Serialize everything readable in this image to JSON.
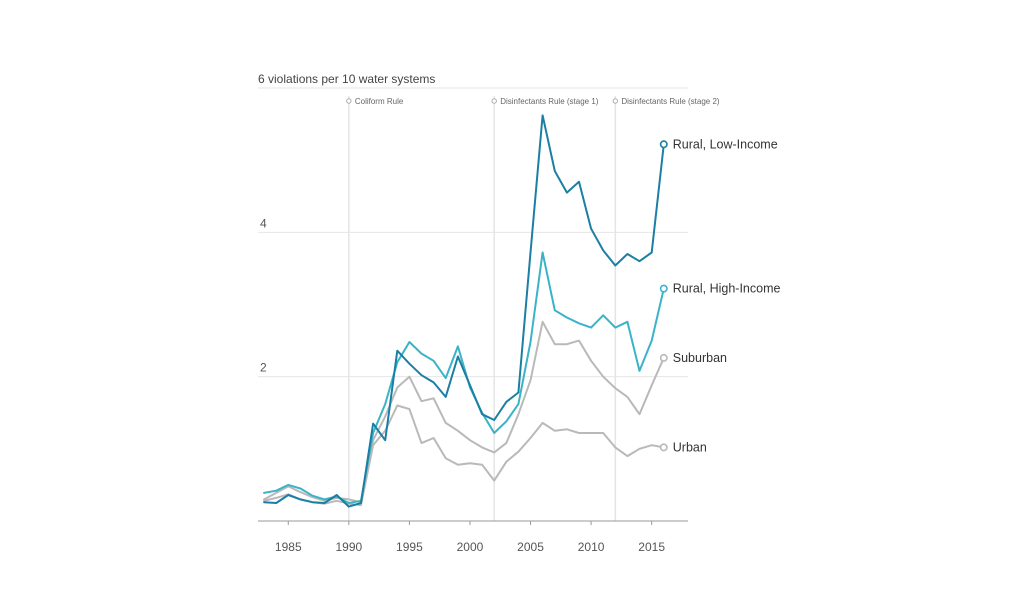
{
  "chart_data": {
    "type": "line",
    "title": "",
    "ylabel": "6 violations per 10 water systems",
    "xlabel": "",
    "xlim": [
      1982.5,
      2018
    ],
    "ylim": [
      0,
      6
    ],
    "x_ticks": [
      1985,
      1990,
      1995,
      2000,
      2005,
      2010,
      2015
    ],
    "y_ticks": [
      2,
      4
    ],
    "y_ticks_labeled": [
      "2",
      "4"
    ],
    "grid": true,
    "annotations": [
      {
        "x": 1990,
        "label": "Coliform Rule"
      },
      {
        "x": 2002,
        "label": "Disinfectants Rule (stage 1)"
      },
      {
        "x": 2012,
        "label": "Disinfectants Rule (stage 2)"
      }
    ],
    "x": [
      1983,
      1984,
      1985,
      1986,
      1987,
      1988,
      1989,
      1990,
      1991,
      1992,
      1993,
      1994,
      1995,
      1996,
      1997,
      1998,
      1999,
      2000,
      2001,
      2002,
      2003,
      2004,
      2005,
      2006,
      2007,
      2008,
      2009,
      2010,
      2011,
      2012,
      2013,
      2014,
      2015,
      2016
    ],
    "series": [
      {
        "name": "Rural, Low-Income",
        "label": "Rural, Low-Income",
        "color": "#1b7fa3",
        "values": [
          0.26,
          0.25,
          0.36,
          0.3,
          0.26,
          0.25,
          0.36,
          0.2,
          0.25,
          1.35,
          1.12,
          2.36,
          2.18,
          2.02,
          1.92,
          1.72,
          2.28,
          1.88,
          1.48,
          1.4,
          1.65,
          1.78,
          3.72,
          5.62,
          4.85,
          4.55,
          4.7,
          4.05,
          3.75,
          3.54,
          3.7,
          3.6,
          3.72,
          5.22
        ]
      },
      {
        "name": "Rural, High-Income",
        "label": "Rural, High-Income",
        "color": "#3ab3c9",
        "values": [
          0.39,
          0.42,
          0.5,
          0.45,
          0.35,
          0.3,
          0.34,
          0.25,
          0.28,
          1.22,
          1.62,
          2.2,
          2.48,
          2.32,
          2.22,
          1.98,
          2.42,
          1.85,
          1.5,
          1.22,
          1.38,
          1.62,
          2.48,
          3.72,
          2.92,
          2.82,
          2.74,
          2.68,
          2.85,
          2.68,
          2.76,
          2.08,
          2.5,
          3.22
        ]
      },
      {
        "name": "Suburban",
        "label": "Suburban",
        "color": "#b9b9b9",
        "values": [
          0.3,
          0.39,
          0.48,
          0.4,
          0.33,
          0.28,
          0.32,
          0.3,
          0.26,
          1.12,
          1.45,
          1.85,
          2.0,
          1.66,
          1.7,
          1.36,
          1.25,
          1.12,
          1.02,
          0.95,
          1.08,
          1.48,
          1.95,
          2.76,
          2.45,
          2.45,
          2.5,
          2.22,
          2.0,
          1.84,
          1.72,
          1.48,
          1.88,
          2.26
        ]
      },
      {
        "name": "Urban",
        "label": "Urban",
        "color": "#b9b9b9",
        "values": [
          0.28,
          0.32,
          0.37,
          0.3,
          0.26,
          0.24,
          0.28,
          0.24,
          0.22,
          1.05,
          1.25,
          1.6,
          1.55,
          1.08,
          1.15,
          0.87,
          0.78,
          0.8,
          0.78,
          0.56,
          0.82,
          0.96,
          1.15,
          1.36,
          1.25,
          1.27,
          1.22,
          1.22,
          1.22,
          1.02,
          0.9,
          1.0,
          1.05,
          1.02
        ]
      }
    ]
  }
}
